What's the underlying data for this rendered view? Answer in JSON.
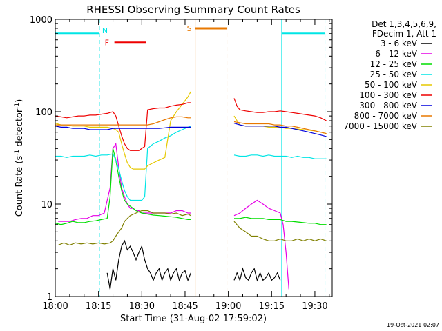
{
  "chart_data": {
    "type": "line",
    "title": "RHESSI Observing Summary Count Rates",
    "xlabel": "Start Time (31-Aug-02 17:59:02)",
    "ylabel_main": "Count Rate (s",
    "ylabel_sup1": "-1",
    "ylabel_mid": " detector",
    "ylabel_sup2": "-1",
    "ylabel_end": ")",
    "y_scale": "log",
    "ylim": [
      1,
      1000
    ],
    "xlim_minutes": [
      0,
      96
    ],
    "x_ticks": [
      {
        "minute": 0,
        "label": "18:00"
      },
      {
        "minute": 15,
        "label": "18:15"
      },
      {
        "minute": 30,
        "label": "18:30"
      },
      {
        "minute": 45,
        "label": "18:45"
      },
      {
        "minute": 60,
        "label": "19:00"
      },
      {
        "minute": 75,
        "label": "19:15"
      },
      {
        "minute": 90,
        "label": "19:30"
      }
    ],
    "y_ticks": [
      {
        "value": 1,
        "label": "1"
      },
      {
        "value": 10,
        "label": "10"
      },
      {
        "value": 100,
        "label": "100"
      },
      {
        "value": 1000,
        "label": "1000"
      }
    ],
    "legend_header": [
      "Det 1,3,4,5,6,9,",
      "FDecim 1, Att 1"
    ],
    "legend_position": "right",
    "timestamp": "19-Oct-2021 02:07",
    "flags": [
      {
        "letter": "N",
        "color": "#00e5e5",
        "bars": [
          [
            0,
            15.3
          ],
          [
            78.5,
            93.5
          ]
        ],
        "level": 700,
        "dashes": [
          15.3,
          93.5
        ],
        "solid": [
          0,
          78.5
        ]
      },
      {
        "letter": "F",
        "color": "#ee0000",
        "bars": [
          [
            20.5,
            31.5
          ]
        ],
        "level": 560
      },
      {
        "letter": "S",
        "color": "#e87800",
        "bars": [
          [
            48.5,
            59.5
          ]
        ],
        "level": 800,
        "solid": [
          48.5
        ],
        "dashes": [
          59.5
        ]
      }
    ],
    "series": [
      {
        "name": "3 - 6 keV",
        "color": "#000000",
        "x": [
          18,
          19,
          20,
          21,
          22,
          23,
          24,
          25,
          26,
          27,
          28,
          29,
          30,
          31,
          32,
          33,
          34,
          35,
          36,
          37,
          38,
          39,
          40,
          41,
          42,
          43,
          44,
          45,
          46,
          47,
          62,
          63,
          64,
          65,
          66,
          67,
          68,
          69,
          70,
          71,
          72,
          73,
          74,
          75,
          76,
          77,
          78
        ],
        "y": [
          1.8,
          1.2,
          2.0,
          1.5,
          2.5,
          3.5,
          4.0,
          3.2,
          3.5,
          3.0,
          2.5,
          3.0,
          3.5,
          2.5,
          2.0,
          1.8,
          1.5,
          1.8,
          2.0,
          1.5,
          1.8,
          2.0,
          1.5,
          1.8,
          2.0,
          1.5,
          1.8,
          1.9,
          1.5,
          1.8,
          1.5,
          1.8,
          1.5,
          2.0,
          1.6,
          1.5,
          1.8,
          2.0,
          1.5,
          1.8,
          1.5,
          1.6,
          1.8,
          1.5,
          1.6,
          1.8,
          1.5
        ]
      },
      {
        "name": "6 - 12 keV",
        "color": "#e600e6",
        "x": [
          1,
          3,
          5,
          7,
          9,
          11,
          13,
          15,
          17,
          19,
          20,
          21,
          22,
          23,
          24,
          25,
          26,
          27,
          28,
          29,
          30,
          32,
          34,
          36,
          38,
          40,
          42,
          44,
          46,
          47,
          62,
          64,
          66,
          68,
          70,
          72,
          74,
          76,
          78,
          79,
          80,
          81
        ],
        "y": [
          6.5,
          6.5,
          6.5,
          6.8,
          7.0,
          7.0,
          7.5,
          7.5,
          8.0,
          15,
          40,
          45,
          25,
          15,
          12,
          10,
          9,
          9,
          8.5,
          8.5,
          8,
          8,
          8,
          8,
          8,
          8,
          8.5,
          8.5,
          8,
          8,
          7.5,
          8,
          9,
          10,
          11,
          10,
          9,
          8.5,
          8,
          6,
          3,
          1.2
        ]
      },
      {
        "name": "12 - 25 keV",
        "color": "#00dd00",
        "x": [
          0,
          2,
          4,
          6,
          8,
          10,
          12,
          14,
          16,
          18,
          19,
          20,
          21,
          22,
          23,
          24,
          25,
          26,
          27,
          28,
          29,
          30,
          32,
          34,
          36,
          38,
          40,
          42,
          44,
          46,
          47,
          62,
          64,
          66,
          68,
          70,
          72,
          74,
          76,
          78,
          80,
          82,
          84,
          86,
          88,
          90,
          92,
          94
        ],
        "y": [
          6.2,
          6.0,
          6.2,
          6.5,
          6.3,
          6.3,
          6.5,
          6.6,
          6.8,
          7.0,
          12,
          40,
          30,
          20,
          14,
          11,
          10,
          9.5,
          9.0,
          8.5,
          8.2,
          8.0,
          7.8,
          7.6,
          7.5,
          7.4,
          7.3,
          7.2,
          7.0,
          6.8,
          6.8,
          7.0,
          7.0,
          7.2,
          7.0,
          7.0,
          7.0,
          6.8,
          6.8,
          6.8,
          6.5,
          6.5,
          6.4,
          6.3,
          6.2,
          6.2,
          6.0,
          6.0
        ]
      },
      {
        "name": "25 - 50 keV",
        "color": "#00e5e5",
        "x": [
          0,
          2,
          4,
          6,
          8,
          10,
          12,
          14,
          16,
          18,
          20,
          21,
          22,
          23,
          24,
          25,
          26,
          27,
          28,
          29,
          30,
          31,
          32,
          34,
          36,
          38,
          40,
          42,
          44,
          46,
          47,
          62,
          64,
          66,
          68,
          70,
          72,
          74,
          76,
          78,
          80,
          82,
          84,
          86,
          88,
          90,
          92,
          94
        ],
        "y": [
          33,
          33,
          32,
          33,
          33,
          33,
          34,
          33,
          34,
          34,
          35,
          30,
          24,
          18,
          14,
          12,
          11,
          11,
          11,
          11,
          11,
          12,
          40,
          45,
          48,
          52,
          55,
          60,
          64,
          68,
          70,
          34,
          33,
          33,
          34,
          34,
          33,
          34,
          33,
          33,
          33,
          32,
          33,
          32,
          32,
          31,
          31,
          31
        ]
      },
      {
        "name": "50 - 100 keV",
        "color": "#e6c800",
        "x": [
          0,
          2,
          4,
          6,
          8,
          10,
          12,
          14,
          16,
          18,
          20,
          21,
          22,
          23,
          24,
          25,
          26,
          27,
          28,
          29,
          30,
          31,
          32,
          34,
          36,
          38,
          40,
          42,
          44,
          46,
          47,
          62,
          63,
          64,
          66,
          68,
          70,
          72,
          74,
          76,
          78,
          80,
          82,
          84,
          86,
          88,
          90,
          92,
          94
        ],
        "y": [
          75,
          72,
          72,
          70,
          70,
          70,
          68,
          68,
          68,
          68,
          66,
          64,
          60,
          45,
          35,
          28,
          25,
          24,
          24,
          24,
          24,
          24,
          26,
          28,
          30,
          32,
          80,
          100,
          120,
          145,
          165,
          90,
          80,
          72,
          70,
          70,
          70,
          70,
          68,
          68,
          68,
          66,
          66,
          65,
          64,
          63,
          62,
          60,
          58
        ]
      },
      {
        "name": "100 - 300 keV",
        "color": "#ee0000",
        "x": [
          0,
          2,
          4,
          6,
          8,
          10,
          12,
          14,
          16,
          18,
          20,
          21,
          22,
          23,
          24,
          25,
          26,
          27,
          28,
          29,
          30,
          31,
          32,
          34,
          36,
          38,
          40,
          42,
          44,
          46,
          47,
          62,
          63,
          64,
          66,
          68,
          70,
          72,
          74,
          76,
          78,
          80,
          82,
          84,
          86,
          88,
          90,
          92,
          94
        ],
        "y": [
          90,
          88,
          86,
          88,
          90,
          90,
          92,
          92,
          94,
          96,
          100,
          90,
          70,
          55,
          45,
          40,
          38,
          38,
          38,
          38,
          40,
          42,
          105,
          108,
          110,
          110,
          115,
          118,
          120,
          125,
          125,
          140,
          115,
          105,
          102,
          100,
          98,
          98,
          100,
          100,
          102,
          100,
          98,
          96,
          94,
          92,
          90,
          86,
          80
        ]
      },
      {
        "name": "300 - 800 keV",
        "color": "#0000dd",
        "x": [
          0,
          2,
          4,
          6,
          8,
          10,
          12,
          14,
          16,
          18,
          20,
          22,
          24,
          26,
          28,
          30,
          32,
          34,
          36,
          38,
          40,
          42,
          44,
          46,
          47,
          62,
          64,
          66,
          68,
          70,
          72,
          74,
          76,
          78,
          80,
          82,
          84,
          86,
          88,
          90,
          92,
          94
        ],
        "y": [
          70,
          68,
          68,
          66,
          66,
          66,
          64,
          64,
          64,
          64,
          66,
          66,
          66,
          66,
          66,
          66,
          66,
          66,
          66,
          67,
          68,
          68,
          68,
          68,
          68,
          75,
          72,
          70,
          70,
          70,
          70,
          70,
          70,
          68,
          68,
          66,
          64,
          62,
          60,
          58,
          56,
          54
        ]
      },
      {
        "name": "800 - 7000 keV",
        "color": "#e87800",
        "x": [
          0,
          2,
          4,
          6,
          8,
          10,
          12,
          14,
          16,
          18,
          20,
          22,
          24,
          26,
          28,
          30,
          32,
          34,
          36,
          38,
          40,
          42,
          44,
          46,
          47,
          62,
          64,
          66,
          68,
          70,
          72,
          74,
          76,
          78,
          80,
          82,
          84,
          86,
          88,
          90,
          92,
          94
        ],
        "y": [
          72,
          72,
          72,
          72,
          72,
          72,
          72,
          72,
          72,
          72,
          72,
          72,
          72,
          72,
          72,
          72,
          72,
          74,
          78,
          82,
          86,
          88,
          88,
          86,
          86,
          78,
          76,
          74,
          74,
          74,
          74,
          74,
          72,
          72,
          70,
          70,
          68,
          66,
          64,
          62,
          60,
          58
        ]
      },
      {
        "name": "7000 - 15000 keV",
        "color": "#808000",
        "x": [
          1,
          3,
          5,
          7,
          9,
          11,
          13,
          15,
          17,
          19,
          20,
          21,
          22,
          23,
          24,
          25,
          26,
          28,
          30,
          32,
          34,
          36,
          38,
          40,
          42,
          44,
          46,
          47,
          62,
          64,
          66,
          68,
          70,
          72,
          74,
          76,
          78,
          80,
          82,
          84,
          86,
          88,
          90,
          92,
          94
        ],
        "y": [
          3.6,
          3.8,
          3.6,
          3.8,
          3.7,
          3.8,
          3.7,
          3.8,
          3.7,
          3.8,
          4.0,
          4.5,
          5.0,
          5.5,
          6.5,
          7.0,
          7.5,
          8.0,
          8.5,
          8.5,
          8.0,
          8.0,
          8.0,
          7.8,
          8.0,
          7.5,
          7.8,
          7.5,
          6.5,
          5.5,
          5.0,
          4.5,
          4.5,
          4.2,
          4.0,
          4.0,
          4.2,
          4.0,
          4.0,
          4.2,
          4.0,
          4.2,
          4.0,
          4.2,
          4.0
        ]
      }
    ]
  }
}
